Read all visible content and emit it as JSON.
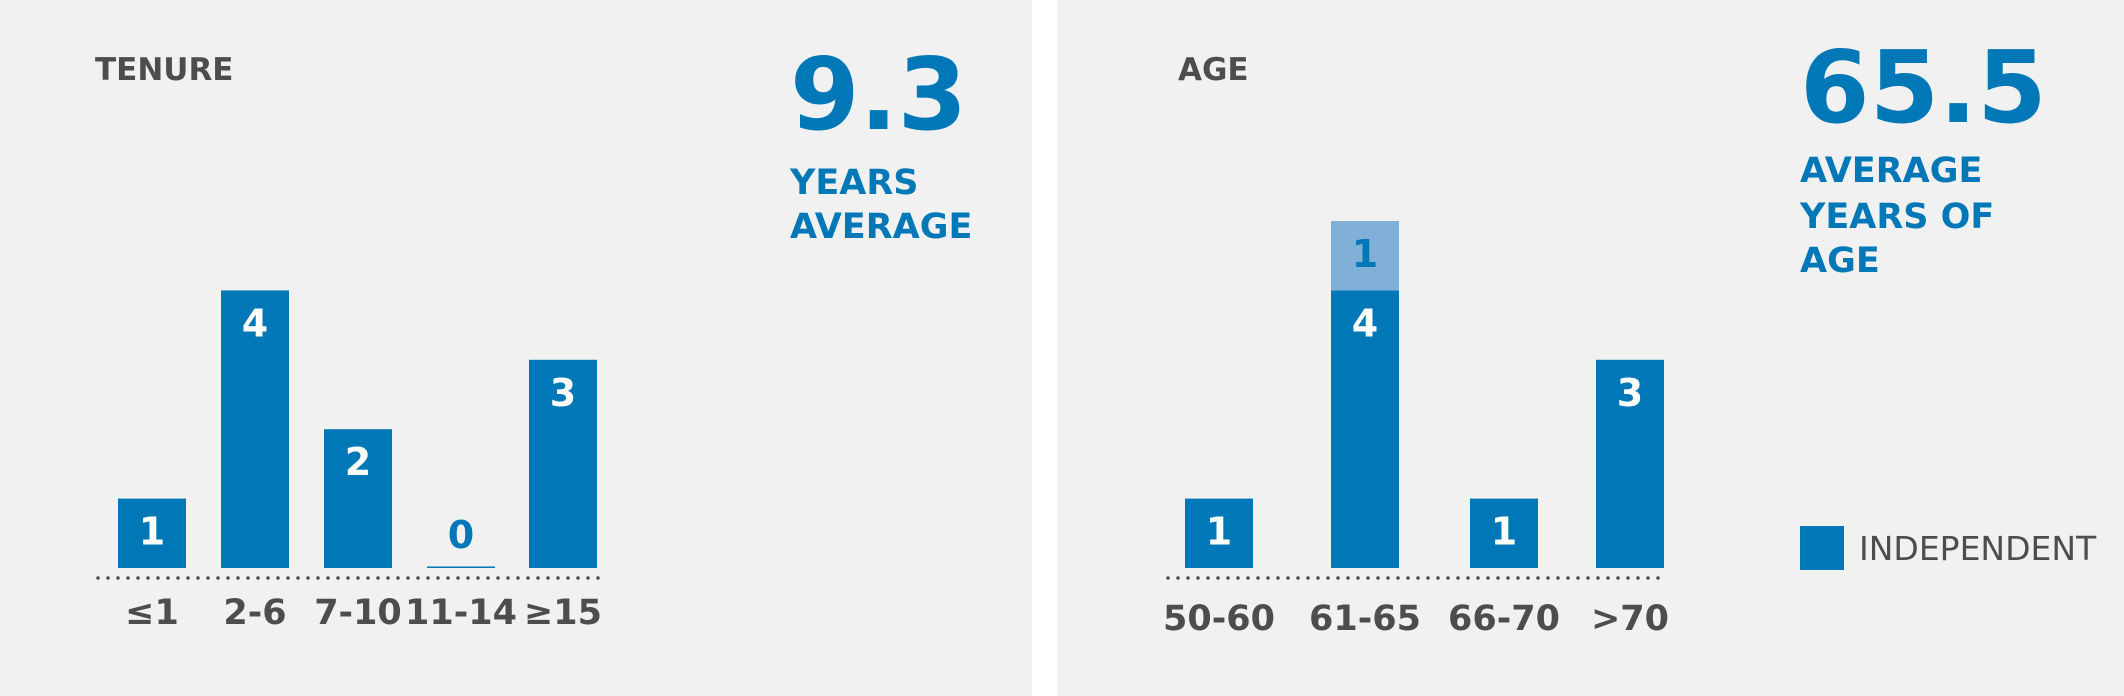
{
  "chart_data": [
    {
      "type": "bar",
      "title": "TENURE",
      "stat": "9.3",
      "stat_label": [
        "YEARS",
        "AVERAGE"
      ],
      "categories": [
        "≤1",
        "2-6",
        "7-10",
        "11-14",
        "≥15"
      ],
      "values": [
        1,
        4,
        2,
        0,
        3
      ],
      "color": "#0077b6"
    },
    {
      "type": "stacked_bar",
      "title": "AGE",
      "stat": "65.5",
      "stat_label": [
        "AVERAGE",
        "YEARS OF",
        "AGE"
      ],
      "categories": [
        "50-60",
        "61-65",
        "66-70",
        ">70"
      ],
      "series": [
        {
          "name": "INDEPENDENT",
          "color": "#0077b6",
          "values": [
            1,
            4,
            1,
            3
          ]
        },
        {
          "color": "#80afd8",
          "values": [
            null,
            1,
            null,
            null
          ]
        }
      ]
    }
  ]
}
